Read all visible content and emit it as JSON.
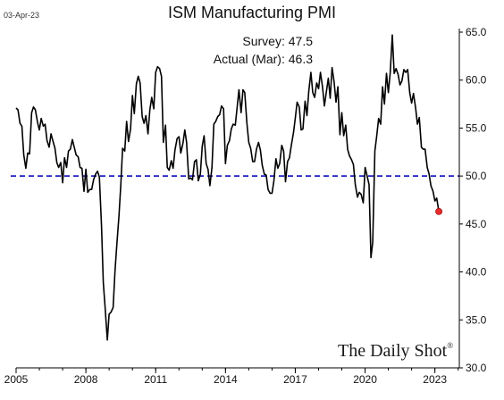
{
  "date_stamp": "03-Apr-23",
  "title": "ISM Manufacturing PMI",
  "annotations": {
    "survey_label": "Survey:",
    "survey_value": "47.5",
    "actual_label": "Actual (Mar):",
    "actual_value": "46.3"
  },
  "watermark": {
    "text": "The Daily Shot",
    "mark": "®"
  },
  "colors": {
    "line": "#000000",
    "threshold": "#1f1fbf",
    "marker": "#e82a2a"
  },
  "chart_data": {
    "type": "line",
    "title": "ISM Manufacturing PMI",
    "xlabel": "",
    "ylabel": "",
    "xlim": [
      2005.0,
      2024.05
    ],
    "ylim": [
      30.0,
      65.0
    ],
    "x_ticks": [
      "2005",
      "2008",
      "2011",
      "2014",
      "2017",
      "2020",
      "2023"
    ],
    "y_ticks": [
      "30.0",
      "35.0",
      "40.0",
      "45.0",
      "50.0",
      "55.0",
      "60.0",
      "65.0"
    ],
    "y_axis_side": "right",
    "reference_line": {
      "value": 50.0,
      "style": "dashed"
    },
    "series": [
      {
        "values": [
          [
            2005.0,
            57.1
          ],
          [
            2005.08,
            56.9
          ],
          [
            2005.17,
            55.5
          ],
          [
            2005.25,
            55.2
          ],
          [
            2005.33,
            52.2
          ],
          [
            2005.42,
            50.8
          ],
          [
            2005.5,
            52.4
          ],
          [
            2005.58,
            52.3
          ],
          [
            2005.67,
            56.6
          ],
          [
            2005.75,
            57.2
          ],
          [
            2005.83,
            56.9
          ],
          [
            2005.92,
            55.6
          ],
          [
            2006.0,
            54.8
          ],
          [
            2006.08,
            56.0
          ],
          [
            2006.17,
            55.2
          ],
          [
            2006.25,
            55.4
          ],
          [
            2006.33,
            53.7
          ],
          [
            2006.42,
            53.0
          ],
          [
            2006.5,
            54.4
          ],
          [
            2006.58,
            53.7
          ],
          [
            2006.67,
            52.9
          ],
          [
            2006.75,
            51.4
          ],
          [
            2006.83,
            50.9
          ],
          [
            2006.92,
            51.4
          ],
          [
            2007.0,
            49.3
          ],
          [
            2007.08,
            51.9
          ],
          [
            2007.17,
            50.9
          ],
          [
            2007.25,
            52.6
          ],
          [
            2007.33,
            52.8
          ],
          [
            2007.42,
            53.8
          ],
          [
            2007.5,
            53.0
          ],
          [
            2007.58,
            52.2
          ],
          [
            2007.67,
            52.0
          ],
          [
            2007.75,
            50.9
          ],
          [
            2007.83,
            50.8
          ],
          [
            2007.92,
            48.4
          ],
          [
            2008.0,
            50.7
          ],
          [
            2008.08,
            48.3
          ],
          [
            2008.17,
            48.6
          ],
          [
            2008.25,
            48.6
          ],
          [
            2008.33,
            49.6
          ],
          [
            2008.42,
            50.2
          ],
          [
            2008.5,
            50.5
          ],
          [
            2008.58,
            49.9
          ],
          [
            2008.67,
            44.8
          ],
          [
            2008.75,
            38.9
          ],
          [
            2008.83,
            36.2
          ],
          [
            2008.92,
            32.9
          ],
          [
            2009.0,
            35.6
          ],
          [
            2009.08,
            35.8
          ],
          [
            2009.17,
            36.3
          ],
          [
            2009.25,
            40.1
          ],
          [
            2009.33,
            42.8
          ],
          [
            2009.42,
            45.8
          ],
          [
            2009.5,
            49.1
          ],
          [
            2009.58,
            52.9
          ],
          [
            2009.67,
            52.6
          ],
          [
            2009.75,
            55.7
          ],
          [
            2009.83,
            53.6
          ],
          [
            2009.92,
            54.9
          ],
          [
            2010.0,
            58.4
          ],
          [
            2010.08,
            56.5
          ],
          [
            2010.17,
            59.6
          ],
          [
            2010.25,
            60.4
          ],
          [
            2010.33,
            59.7
          ],
          [
            2010.42,
            56.2
          ],
          [
            2010.5,
            55.5
          ],
          [
            2010.58,
            56.3
          ],
          [
            2010.67,
            54.4
          ],
          [
            2010.75,
            56.9
          ],
          [
            2010.83,
            58.2
          ],
          [
            2010.92,
            57.0
          ],
          [
            2011.0,
            60.8
          ],
          [
            2011.08,
            61.4
          ],
          [
            2011.17,
            61.2
          ],
          [
            2011.25,
            60.4
          ],
          [
            2011.33,
            53.5
          ],
          [
            2011.42,
            55.3
          ],
          [
            2011.5,
            50.9
          ],
          [
            2011.58,
            50.6
          ],
          [
            2011.67,
            51.6
          ],
          [
            2011.75,
            50.8
          ],
          [
            2011.83,
            52.7
          ],
          [
            2011.92,
            53.9
          ],
          [
            2012.0,
            54.1
          ],
          [
            2012.08,
            52.4
          ],
          [
            2012.17,
            53.4
          ],
          [
            2012.25,
            54.8
          ],
          [
            2012.33,
            53.5
          ],
          [
            2012.42,
            49.7
          ],
          [
            2012.5,
            49.8
          ],
          [
            2012.58,
            49.6
          ],
          [
            2012.67,
            51.5
          ],
          [
            2012.75,
            51.7
          ],
          [
            2012.83,
            49.5
          ],
          [
            2012.92,
            50.2
          ],
          [
            2013.0,
            53.1
          ],
          [
            2013.08,
            54.2
          ],
          [
            2013.17,
            51.3
          ],
          [
            2013.25,
            50.7
          ],
          [
            2013.33,
            49.0
          ],
          [
            2013.42,
            50.9
          ],
          [
            2013.5,
            55.4
          ],
          [
            2013.58,
            55.7
          ],
          [
            2013.67,
            56.2
          ],
          [
            2013.75,
            56.4
          ],
          [
            2013.83,
            57.3
          ],
          [
            2013.92,
            57.0
          ],
          [
            2014.0,
            51.3
          ],
          [
            2014.08,
            53.2
          ],
          [
            2014.17,
            53.7
          ],
          [
            2014.25,
            54.9
          ],
          [
            2014.33,
            55.4
          ],
          [
            2014.42,
            55.3
          ],
          [
            2014.5,
            57.1
          ],
          [
            2014.58,
            59.0
          ],
          [
            2014.67,
            56.6
          ],
          [
            2014.75,
            59.0
          ],
          [
            2014.83,
            58.7
          ],
          [
            2014.92,
            55.5
          ],
          [
            2015.0,
            53.5
          ],
          [
            2015.08,
            52.9
          ],
          [
            2015.17,
            51.5
          ],
          [
            2015.25,
            51.5
          ],
          [
            2015.33,
            52.8
          ],
          [
            2015.42,
            53.5
          ],
          [
            2015.5,
            52.7
          ],
          [
            2015.58,
            51.1
          ],
          [
            2015.67,
            50.2
          ],
          [
            2015.75,
            50.1
          ],
          [
            2015.83,
            48.6
          ],
          [
            2015.92,
            48.2
          ],
          [
            2016.0,
            48.2
          ],
          [
            2016.08,
            49.5
          ],
          [
            2016.17,
            51.8
          ],
          [
            2016.25,
            50.8
          ],
          [
            2016.33,
            51.3
          ],
          [
            2016.42,
            53.2
          ],
          [
            2016.5,
            52.6
          ],
          [
            2016.58,
            49.4
          ],
          [
            2016.67,
            51.5
          ],
          [
            2016.75,
            51.9
          ],
          [
            2016.83,
            53.2
          ],
          [
            2016.92,
            54.5
          ],
          [
            2017.0,
            56.0
          ],
          [
            2017.08,
            57.7
          ],
          [
            2017.17,
            57.2
          ],
          [
            2017.25,
            54.8
          ],
          [
            2017.33,
            54.9
          ],
          [
            2017.42,
            57.8
          ],
          [
            2017.5,
            56.3
          ],
          [
            2017.58,
            58.8
          ],
          [
            2017.67,
            60.8
          ],
          [
            2017.75,
            58.7
          ],
          [
            2017.83,
            58.2
          ],
          [
            2017.92,
            59.7
          ],
          [
            2018.0,
            59.1
          ],
          [
            2018.08,
            60.8
          ],
          [
            2018.17,
            59.3
          ],
          [
            2018.25,
            57.3
          ],
          [
            2018.33,
            58.7
          ],
          [
            2018.42,
            60.2
          ],
          [
            2018.5,
            58.1
          ],
          [
            2018.58,
            61.3
          ],
          [
            2018.67,
            59.8
          ],
          [
            2018.75,
            57.7
          ],
          [
            2018.83,
            59.3
          ],
          [
            2018.92,
            54.3
          ],
          [
            2019.0,
            56.6
          ],
          [
            2019.08,
            54.2
          ],
          [
            2019.17,
            55.3
          ],
          [
            2019.25,
            52.8
          ],
          [
            2019.33,
            52.1
          ],
          [
            2019.42,
            51.7
          ],
          [
            2019.5,
            51.2
          ],
          [
            2019.58,
            49.1
          ],
          [
            2019.67,
            47.8
          ],
          [
            2019.75,
            48.3
          ],
          [
            2019.83,
            48.1
          ],
          [
            2019.92,
            47.2
          ],
          [
            2020.0,
            50.9
          ],
          [
            2020.08,
            50.1
          ],
          [
            2020.17,
            49.1
          ],
          [
            2020.25,
            41.5
          ],
          [
            2020.33,
            43.1
          ],
          [
            2020.42,
            52.6
          ],
          [
            2020.5,
            54.2
          ],
          [
            2020.58,
            56.0
          ],
          [
            2020.67,
            55.4
          ],
          [
            2020.75,
            59.3
          ],
          [
            2020.83,
            57.5
          ],
          [
            2020.92,
            60.7
          ],
          [
            2021.0,
            58.7
          ],
          [
            2021.08,
            60.8
          ],
          [
            2021.17,
            64.7
          ],
          [
            2021.25,
            60.7
          ],
          [
            2021.33,
            61.2
          ],
          [
            2021.42,
            60.6
          ],
          [
            2021.5,
            59.5
          ],
          [
            2021.58,
            59.9
          ],
          [
            2021.67,
            61.1
          ],
          [
            2021.75,
            60.8
          ],
          [
            2021.83,
            61.1
          ],
          [
            2021.92,
            58.7
          ],
          [
            2022.0,
            57.6
          ],
          [
            2022.08,
            58.6
          ],
          [
            2022.17,
            57.1
          ],
          [
            2022.25,
            55.4
          ],
          [
            2022.33,
            56.1
          ],
          [
            2022.42,
            53.0
          ],
          [
            2022.5,
            52.8
          ],
          [
            2022.58,
            52.8
          ],
          [
            2022.67,
            50.9
          ],
          [
            2022.75,
            50.2
          ],
          [
            2022.83,
            49.0
          ],
          [
            2022.92,
            48.4
          ],
          [
            2023.0,
            47.4
          ],
          [
            2023.08,
            47.7
          ],
          [
            2023.17,
            46.3
          ]
        ]
      }
    ],
    "highlight_point": {
      "x": 2023.17,
      "y": 46.3
    }
  }
}
